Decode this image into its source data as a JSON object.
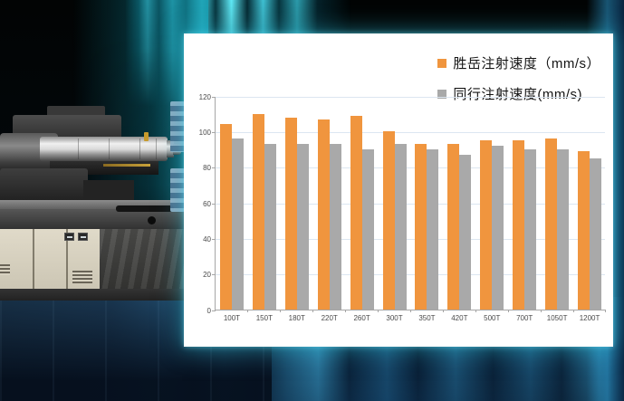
{
  "chart_data": {
    "type": "bar",
    "title": "",
    "categories": [
      "100T",
      "150T",
      "180T",
      "220T",
      "260T",
      "300T",
      "350T",
      "420T",
      "500T",
      "700T",
      "1050T",
      "1200T"
    ],
    "series": [
      {
        "name": "胜岳注射速度（mm/s）",
        "color": "#F0953E",
        "values": [
          104,
          110,
          108,
          107,
          109,
          100,
          93,
          93,
          95,
          95,
          96,
          89
        ]
      },
      {
        "name": "同行注射速度(mm/s)",
        "color": "#A9A9A9",
        "values": [
          96,
          93,
          93,
          93,
          90,
          93,
          90,
          87,
          92,
          90,
          90,
          85
        ]
      }
    ],
    "xlabel": "",
    "ylabel": "",
    "ylim": [
      0,
      120
    ],
    "yticks": [
      0,
      20,
      40,
      60,
      80,
      100,
      120
    ],
    "grid": true,
    "legend_position": "top-right",
    "gridline_color": "#DCE6F1",
    "axis_color": "#A6A6A6",
    "tick_label_color": "#4A4A4A"
  }
}
